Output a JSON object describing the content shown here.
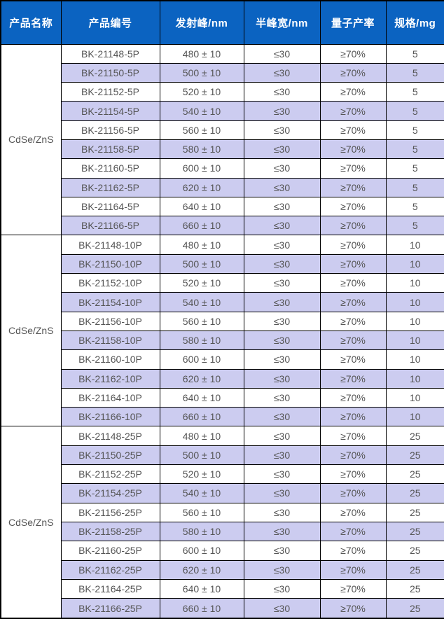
{
  "table": {
    "columns": [
      {
        "label": "产品名称"
      },
      {
        "label": "产品编号"
      },
      {
        "label": "发射峰/nm"
      },
      {
        "label": "半峰宽/nm"
      },
      {
        "label": "量子产率"
      },
      {
        "label": "规格/mg"
      }
    ],
    "groups": [
      {
        "name": "CdSe/ZnS",
        "rows": [
          {
            "code": "BK-21148-5P",
            "emission": "480 ± 10",
            "fwhm": "≤30",
            "qy": "≥70%",
            "spec": "5"
          },
          {
            "code": "BK-21150-5P",
            "emission": "500 ± 10",
            "fwhm": "≤30",
            "qy": "≥70%",
            "spec": "5"
          },
          {
            "code": "BK-21152-5P",
            "emission": "520 ± 10",
            "fwhm": "≤30",
            "qy": "≥70%",
            "spec": "5"
          },
          {
            "code": "BK-21154-5P",
            "emission": "540 ± 10",
            "fwhm": "≤30",
            "qy": "≥70%",
            "spec": "5"
          },
          {
            "code": "BK-21156-5P",
            "emission": "560 ± 10",
            "fwhm": "≤30",
            "qy": "≥70%",
            "spec": "5"
          },
          {
            "code": "BK-21158-5P",
            "emission": "580 ± 10",
            "fwhm": "≤30",
            "qy": "≥70%",
            "spec": "5"
          },
          {
            "code": "BK-21160-5P",
            "emission": "600 ± 10",
            "fwhm": "≤30",
            "qy": "≥70%",
            "spec": "5"
          },
          {
            "code": "BK-21162-5P",
            "emission": "620 ± 10",
            "fwhm": "≤30",
            "qy": "≥70%",
            "spec": "5"
          },
          {
            "code": "BK-21164-5P",
            "emission": "640 ± 10",
            "fwhm": "≤30",
            "qy": "≥70%",
            "spec": "5"
          },
          {
            "code": "BK-21166-5P",
            "emission": "660 ± 10",
            "fwhm": "≤30",
            "qy": "≥70%",
            "spec": "5"
          }
        ]
      },
      {
        "name": "CdSe/ZnS",
        "rows": [
          {
            "code": "BK-21148-10P",
            "emission": "480 ± 10",
            "fwhm": "≤30",
            "qy": "≥70%",
            "spec": "10"
          },
          {
            "code": "BK-21150-10P",
            "emission": "500 ± 10",
            "fwhm": "≤30",
            "qy": "≥70%",
            "spec": "10"
          },
          {
            "code": "BK-21152-10P",
            "emission": "520 ± 10",
            "fwhm": "≤30",
            "qy": "≥70%",
            "spec": "10"
          },
          {
            "code": "BK-21154-10P",
            "emission": "540 ± 10",
            "fwhm": "≤30",
            "qy": "≥70%",
            "spec": "10"
          },
          {
            "code": "BK-21156-10P",
            "emission": "560 ± 10",
            "fwhm": "≤30",
            "qy": "≥70%",
            "spec": "10"
          },
          {
            "code": "BK-21158-10P",
            "emission": "580 ± 10",
            "fwhm": "≤30",
            "qy": "≥70%",
            "spec": "10"
          },
          {
            "code": "BK-21160-10P",
            "emission": "600 ± 10",
            "fwhm": "≤30",
            "qy": "≥70%",
            "spec": "10"
          },
          {
            "code": "BK-21162-10P",
            "emission": "620 ± 10",
            "fwhm": "≤30",
            "qy": "≥70%",
            "spec": "10"
          },
          {
            "code": "BK-21164-10P",
            "emission": "640 ± 10",
            "fwhm": "≤30",
            "qy": "≥70%",
            "spec": "10"
          },
          {
            "code": "BK-21166-10P",
            "emission": "660 ± 10",
            "fwhm": "≤30",
            "qy": "≥70%",
            "spec": "10"
          }
        ]
      },
      {
        "name": "CdSe/ZnS",
        "rows": [
          {
            "code": "BK-21148-25P",
            "emission": "480 ± 10",
            "fwhm": "≤30",
            "qy": "≥70%",
            "spec": "25"
          },
          {
            "code": "BK-21150-25P",
            "emission": "500 ± 10",
            "fwhm": "≤30",
            "qy": "≥70%",
            "spec": "25"
          },
          {
            "code": "BK-21152-25P",
            "emission": "520 ± 10",
            "fwhm": "≤30",
            "qy": "≥70%",
            "spec": "25"
          },
          {
            "code": "BK-21154-25P",
            "emission": "540 ± 10",
            "fwhm": "≤30",
            "qy": "≥70%",
            "spec": "25"
          },
          {
            "code": "BK-21156-25P",
            "emission": "560 ± 10",
            "fwhm": "≤30",
            "qy": "≥70%",
            "spec": "25"
          },
          {
            "code": "BK-21158-25P",
            "emission": "580 ± 10",
            "fwhm": "≤30",
            "qy": "≥70%",
            "spec": "25"
          },
          {
            "code": "BK-21160-25P",
            "emission": "600 ± 10",
            "fwhm": "≤30",
            "qy": "≥70%",
            "spec": "25"
          },
          {
            "code": "BK-21162-25P",
            "emission": "620 ± 10",
            "fwhm": "≤30",
            "qy": "≥70%",
            "spec": "25"
          },
          {
            "code": "BK-21164-25P",
            "emission": "640 ± 10",
            "fwhm": "≤30",
            "qy": "≥70%",
            "spec": "25"
          },
          {
            "code": "BK-21166-25P",
            "emission": "660 ± 10",
            "fwhm": "≤30",
            "qy": "≥70%",
            "spec": "25"
          }
        ]
      }
    ]
  },
  "colors": {
    "header_bg": "#0b63c1",
    "header_text": "#ffffff",
    "stripe_bg": "#ccccf0",
    "row_bg": "#ffffff",
    "cell_text": "#555555",
    "border": "#000000"
  }
}
